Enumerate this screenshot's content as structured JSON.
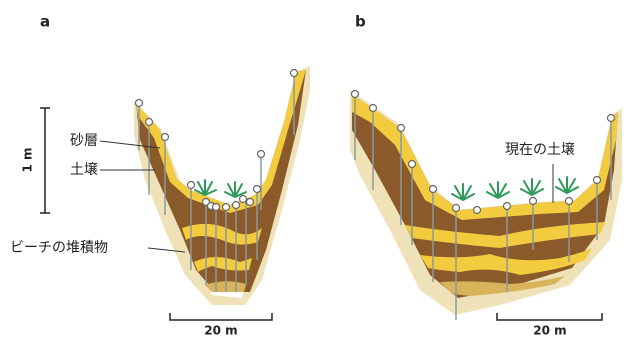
{
  "panels": [
    {
      "label": "a",
      "vertical_scale": "1 m",
      "labels": [
        "砂層",
        "土壌",
        "ビーチの堆積物"
      ],
      "horizontal_scale": "20 m"
    },
    {
      "label": "b",
      "labels": [
        "現在の土壌"
      ],
      "horizontal_scale": "20 m"
    }
  ]
}
